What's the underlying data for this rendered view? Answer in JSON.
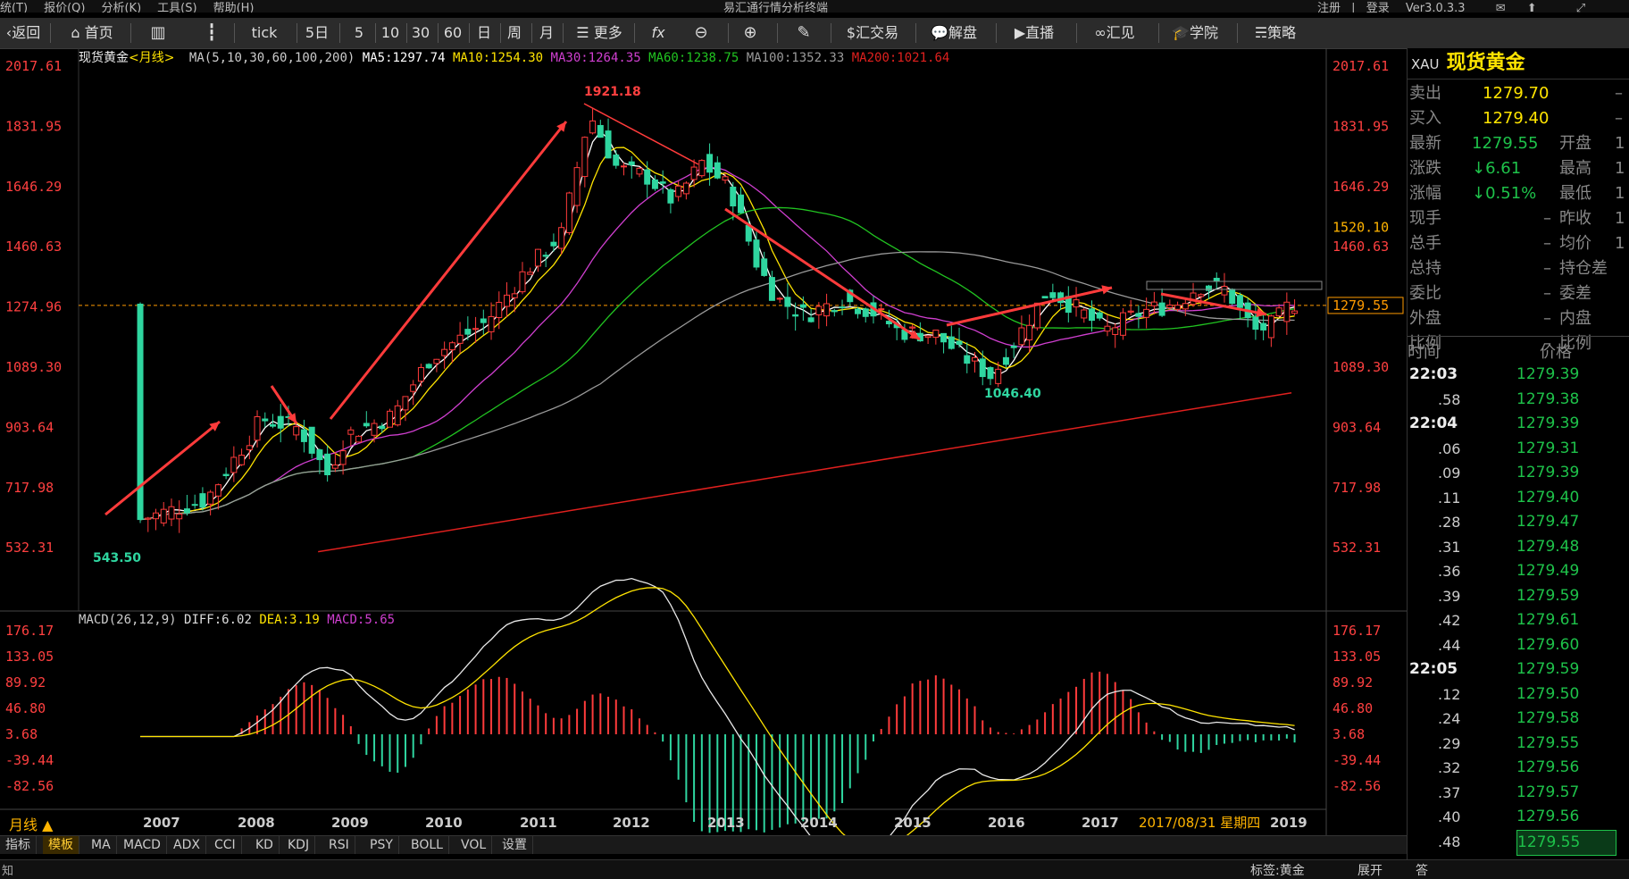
{
  "top_menu": [
    "统(T)",
    "报价(Q)",
    "分析(K)",
    "工具(S)",
    "帮助(H)"
  ],
  "app_title": "易汇通行情分析终端",
  "top_right": {
    "register": "注册",
    "login": "登录",
    "version": "Ver3.0.3.3"
  },
  "toolbar": {
    "back": "返回",
    "home": "首页",
    "tick": "tick",
    "five_day": "5日",
    "periods": [
      "5",
      "10",
      "30",
      "60",
      "日",
      "周",
      "月"
    ],
    "more": "更多",
    "fx": "fx",
    "trade": "汇交易",
    "analysis": "解盘",
    "live": "直播",
    "huijian": "汇见",
    "school": "学院",
    "strategy": "策略"
  },
  "chart_header": {
    "symbol": "现货黄金",
    "period": "<月线>",
    "ma_label": "MA(5,10,30,60,100,200)",
    "ma5": "MA5:1297.74",
    "ma10": "MA10:1254.30",
    "ma30": "MA30:1264.35",
    "ma60": "MA60:1238.75",
    "ma100": "MA100:1352.33",
    "ma200": "MA200:1021.64"
  },
  "macd_header": {
    "label": "MACD(26,12,9)",
    "diff": "DIFF:6.02",
    "dea": "DEA:3.19",
    "macd": "MACD:5.65"
  },
  "price_axis": [
    "2017.61",
    "1831.95",
    "1646.29",
    "1460.63",
    "1274.96",
    "1089.30",
    "903.64",
    "717.98",
    "532.31"
  ],
  "macd_axis": [
    "176.17",
    "133.05",
    "89.92",
    "46.80",
    "3.68",
    "-39.44",
    "-82.56"
  ],
  "right_axis_extra": {
    "level": "1520.10",
    "current": "1279.55"
  },
  "annotations": {
    "high": "1921.18",
    "low1": "543.50",
    "low2": "1046.40"
  },
  "year_labels": [
    "2007",
    "2008",
    "2009",
    "2010",
    "2011",
    "2012",
    "2013",
    "2014",
    "2015",
    "2016",
    "2017",
    "2019"
  ],
  "cursor_date": "2017/08/31 星期四",
  "period_indicator": "月线",
  "colors": {
    "up": "#ff3b3b",
    "down": "#2fd6a0",
    "ma5": "#ffffff",
    "ma10": "#ffe400",
    "ma30": "#d03fd0",
    "ma60": "#21c421",
    "ma100": "#9a9a9a",
    "ma200": "#e0201e",
    "axis_red": "#ff3b3b"
  },
  "right_panel": {
    "code": "XAU",
    "name": "现货黄金",
    "quotes": [
      {
        "label": "卖出",
        "value": "1279.70",
        "label2": "",
        "value2": "–"
      },
      {
        "label": "买入",
        "value": "1279.40",
        "label2": "",
        "value2": "–"
      },
      {
        "label": "最新",
        "value": "1279.55",
        "label2": "开盘",
        "value2": "1"
      },
      {
        "label": "涨跌",
        "value": "↓6.61",
        "label2": "最高",
        "value2": "1"
      },
      {
        "label": "涨幅",
        "value": "↓0.51%",
        "label2": "最低",
        "value2": "1"
      },
      {
        "label": "现手",
        "value": "–",
        "label2": "昨收",
        "value2": "1"
      },
      {
        "label": "总手",
        "value": "–",
        "label2": "均价",
        "value2": "1"
      },
      {
        "label": "总持",
        "value": "–",
        "label2": "持仓差",
        "value2": ""
      },
      {
        "label": "委比",
        "value": "–",
        "label2": "委差",
        "value2": ""
      },
      {
        "label": "外盘",
        "value": "–",
        "label2": "内盘",
        "value2": ""
      },
      {
        "label": "比例",
        "value": "–",
        "label2": "比例",
        "value2": ""
      }
    ],
    "tick_header": {
      "time": "时间",
      "price": "价格"
    },
    "ticks": [
      {
        "time": "22:03",
        "price": "1279.39"
      },
      {
        "time": ".58",
        "price": "1279.38"
      },
      {
        "time": "22:04",
        "price": "1279.39"
      },
      {
        "time": ".06",
        "price": "1279.31"
      },
      {
        "time": ".09",
        "price": "1279.39"
      },
      {
        "time": ".11",
        "price": "1279.40"
      },
      {
        "time": ".28",
        "price": "1279.47"
      },
      {
        "time": ".31",
        "price": "1279.48"
      },
      {
        "time": ".36",
        "price": "1279.49"
      },
      {
        "time": ".39",
        "price": "1279.59"
      },
      {
        "time": ".42",
        "price": "1279.61"
      },
      {
        "time": ".44",
        "price": "1279.60"
      },
      {
        "time": "22:05",
        "price": "1279.59"
      },
      {
        "time": ".12",
        "price": "1279.50"
      },
      {
        "time": ".24",
        "price": "1279.58"
      },
      {
        "time": ".29",
        "price": "1279.55"
      },
      {
        "time": ".32",
        "price": "1279.56"
      },
      {
        "time": ".37",
        "price": "1279.57"
      },
      {
        "time": ".40",
        "price": "1279.56"
      },
      {
        "time": ".48",
        "price": "1279.55"
      }
    ]
  },
  "bottom_tabs": [
    "指标",
    "模板",
    "MA",
    "MACD",
    "ADX",
    "CCI",
    "KD",
    "KDJ",
    "RSI",
    "PSY",
    "BOLL",
    "VOL",
    "设置"
  ],
  "status": {
    "left": "知",
    "right1": "标签:黄金",
    "right2": "展开",
    "right3": "答"
  }
}
